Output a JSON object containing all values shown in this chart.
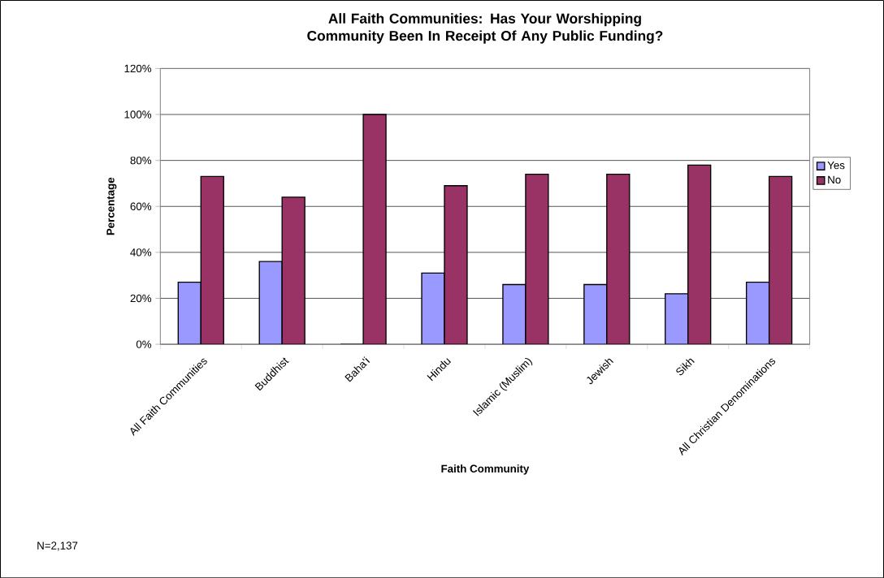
{
  "chart_data": {
    "type": "bar",
    "title": "All Faith Communities: Has Your Worshipping Community Been In Receipt Of Any Public Funding?",
    "xlabel": "Faith Community",
    "ylabel": "Percentage",
    "categories": [
      "All Faith Communities",
      "Buddhist",
      "Baha'i",
      "Hindu",
      "Islamic (Muslim)",
      "Jewish",
      "Sikh",
      "All Christian Denominations"
    ],
    "series": [
      {
        "name": "Yes",
        "color": "#9999ff",
        "values": [
          27,
          36,
          0,
          31,
          26,
          26,
          22,
          27
        ]
      },
      {
        "name": "No",
        "color": "#993366",
        "values": [
          73,
          64,
          100,
          69,
          74,
          74,
          78,
          73
        ]
      }
    ],
    "ylim": [
      0,
      120
    ],
    "yticks": [
      {
        "value": 0,
        "label": "0%"
      },
      {
        "value": 20,
        "label": "20%"
      },
      {
        "value": 40,
        "label": "40%"
      },
      {
        "value": 60,
        "label": "60%"
      },
      {
        "value": 80,
        "label": "80%"
      },
      {
        "value": 100,
        "label": "100%"
      },
      {
        "value": 120,
        "label": "120%"
      }
    ],
    "grid": "y",
    "legend": "right",
    "annotations": [
      "N=2,137"
    ]
  }
}
